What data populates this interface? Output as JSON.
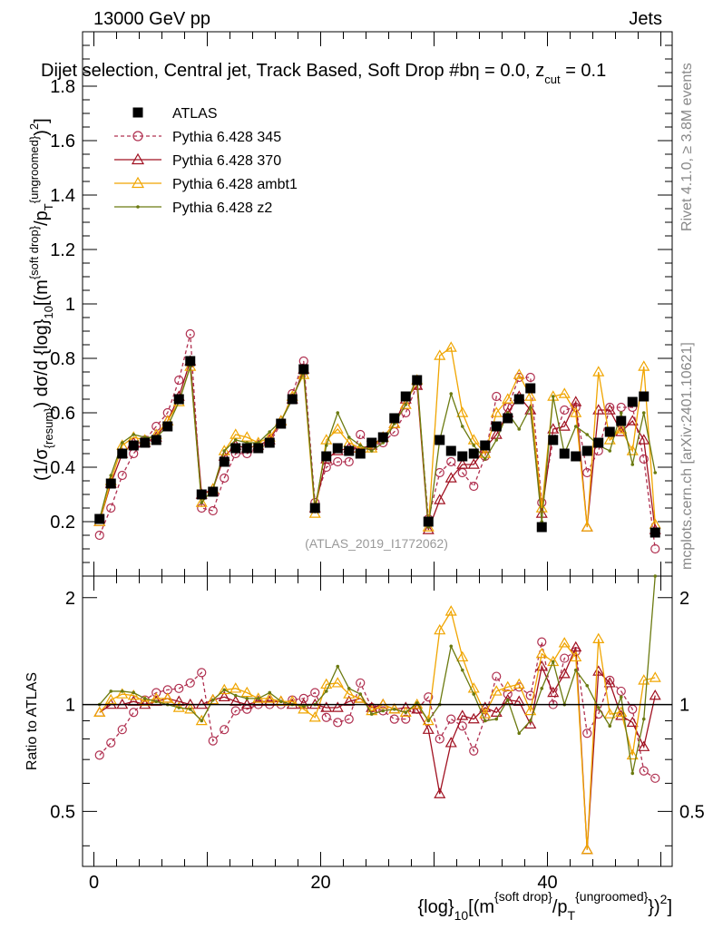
{
  "header": {
    "energy": "13000 GeV pp",
    "category": "Jets",
    "selection_prefix": "Dijet selection, Central jet, Track Based, Soft Drop #b",
    "eta_text": "η = 0.0, z",
    "cut_sub": "cut",
    "zcut_val": " = 0.1",
    "watermark": "(ATLAS_2019_I1772062)",
    "side_label_top": "Rivet 4.1.0, ≥ 3.8M events",
    "side_label_bottom": "mcplots.cern.ch [arXiv:2401.10621]"
  },
  "axes": {
    "ylabel_main": "(1/σ_{resum}) dσ/d {log}_{10}[(m^{soft drop}/p_T^{ungroomed})^2]",
    "ylabel_ratio": "Ratio to ATLAS",
    "xlabel": "{log}_{10}[(m^{soft drop}/p_T^{ungroomed})^2]"
  },
  "legend": [
    {
      "name": "ATLAS",
      "color": "#000000",
      "marker": "square"
    },
    {
      "name": "Pythia 6.428 345",
      "color": "#b03050",
      "marker": "circle"
    },
    {
      "name": "Pythia 6.428 370",
      "color": "#a01020",
      "marker": "triangle"
    },
    {
      "name": "Pythia 6.428 ambt1",
      "color": "#f0a500",
      "marker": "triangle"
    },
    {
      "name": "Pythia 6.428 z2",
      "color": "#6b7a10",
      "marker": "dot"
    }
  ],
  "chart_data": [
    {
      "type": "line",
      "panel": "main",
      "title": "Dijet selection, Central jet, Track Based, Soft Drop #b η = 0.0, z_cut = 0.1",
      "xlim": [
        -1,
        51
      ],
      "ylim": [
        0,
        2.0
      ],
      "yticks": [
        0.2,
        0.4,
        0.6,
        0.8,
        1,
        1.2,
        1.4,
        1.6,
        1.8
      ],
      "ytick_labels": [
        "0.2",
        "0.4",
        "0.6",
        "0.8",
        "1",
        "1.2",
        "1.4",
        "1.6",
        "1.8"
      ],
      "x": [
        0.5,
        1.5,
        2.5,
        3.5,
        4.5,
        5.5,
        6.5,
        7.5,
        8.5,
        9.5,
        10.5,
        11.5,
        12.5,
        13.5,
        14.5,
        15.5,
        16.5,
        17.5,
        18.5,
        19.5,
        20.5,
        21.5,
        22.5,
        23.5,
        24.5,
        25.5,
        26.5,
        27.5,
        28.5,
        29.5,
        30.5,
        31.5,
        32.5,
        33.5,
        34.5,
        35.5,
        36.5,
        37.5,
        38.5,
        39.5,
        40.5,
        41.5,
        42.5,
        43.5,
        44.5,
        45.5,
        46.5,
        47.5,
        48.5,
        49.5
      ],
      "series": [
        {
          "name": "ATLAS",
          "values": [
            0.21,
            0.34,
            0.45,
            0.48,
            0.49,
            0.5,
            0.55,
            0.65,
            0.79,
            0.3,
            0.31,
            0.42,
            0.47,
            0.47,
            0.47,
            0.49,
            0.56,
            0.65,
            0.76,
            0.25,
            0.44,
            0.47,
            0.46,
            0.45,
            0.49,
            0.51,
            0.58,
            0.66,
            0.72,
            0.2,
            0.5,
            0.46,
            0.44,
            0.45,
            0.48,
            0.55,
            0.58,
            0.65,
            0.69,
            0.18,
            0.5,
            0.45,
            0.44,
            0.46,
            0.49,
            0.53,
            0.57,
            0.64,
            0.66,
            0.16
          ]
        },
        {
          "name": "Pythia 6.428 345",
          "values": [
            0.15,
            0.25,
            0.37,
            0.45,
            0.5,
            0.55,
            0.6,
            0.72,
            0.89,
            0.25,
            0.24,
            0.36,
            0.45,
            0.45,
            0.47,
            0.49,
            0.56,
            0.67,
            0.79,
            0.27,
            0.4,
            0.42,
            0.42,
            0.52,
            0.48,
            0.49,
            0.53,
            0.6,
            0.7,
            0.21,
            0.38,
            0.42,
            0.38,
            0.33,
            0.44,
            0.66,
            0.62,
            0.73,
            0.73,
            0.27,
            0.5,
            0.61,
            0.62,
            0.38,
            0.46,
            0.62,
            0.62,
            0.62,
            0.43,
            0.1
          ]
        },
        {
          "name": "Pythia 6.428 370",
          "values": [
            0.2,
            0.34,
            0.45,
            0.49,
            0.49,
            0.51,
            0.57,
            0.66,
            0.79,
            0.3,
            0.32,
            0.44,
            0.48,
            0.47,
            0.48,
            0.5,
            0.57,
            0.65,
            0.76,
            0.25,
            0.43,
            0.46,
            0.47,
            0.47,
            0.48,
            0.51,
            0.56,
            0.65,
            0.7,
            0.17,
            0.28,
            0.36,
            0.41,
            0.41,
            0.47,
            0.52,
            0.6,
            0.66,
            0.61,
            0.23,
            0.54,
            0.55,
            0.64,
            0.18,
            0.61,
            0.61,
            0.53,
            0.57,
            0.5,
            0.17
          ]
        },
        {
          "name": "Pythia 6.428 ambt1",
          "values": [
            0.2,
            0.35,
            0.48,
            0.51,
            0.5,
            0.52,
            0.57,
            0.64,
            0.77,
            0.27,
            0.32,
            0.46,
            0.52,
            0.51,
            0.49,
            0.51,
            0.57,
            0.66,
            0.74,
            0.23,
            0.5,
            0.54,
            0.49,
            0.47,
            0.47,
            0.51,
            0.56,
            0.63,
            0.72,
            0.18,
            0.81,
            0.84,
            0.6,
            0.5,
            0.45,
            0.6,
            0.65,
            0.74,
            0.66,
            0.25,
            0.66,
            0.67,
            0.6,
            0.18,
            0.75,
            0.5,
            0.54,
            0.46,
            0.77,
            0.19
          ]
        },
        {
          "name": "Pythia 6.428 z2",
          "values": [
            0.21,
            0.37,
            0.49,
            0.52,
            0.51,
            0.51,
            0.55,
            0.64,
            0.77,
            0.27,
            0.32,
            0.46,
            0.5,
            0.49,
            0.49,
            0.53,
            0.57,
            0.65,
            0.75,
            0.25,
            0.48,
            0.6,
            0.51,
            0.48,
            0.46,
            0.49,
            0.56,
            0.63,
            0.73,
            0.18,
            0.5,
            0.67,
            0.55,
            0.48,
            0.43,
            0.5,
            0.6,
            0.54,
            0.62,
            0.2,
            0.66,
            0.45,
            0.55,
            0.52,
            0.48,
            0.46,
            0.6,
            0.41,
            0.6,
            0.38
          ]
        }
      ]
    },
    {
      "type": "line",
      "panel": "ratio",
      "ylabel": "Ratio to ATLAS",
      "xlabel": "{log}_{10}[(m^{soft drop}/p_T^{ungroomed})^2]",
      "xlim": [
        -1,
        51
      ],
      "ylim": [
        0.35,
        2.3
      ],
      "xticks": [
        0,
        20,
        40
      ],
      "xtick_labels": [
        "0",
        "20",
        "40"
      ],
      "yticks": [
        0.5,
        1,
        2
      ],
      "ytick_labels": [
        "0.5",
        "1",
        "2"
      ],
      "reference_line": 1,
      "series": [
        {
          "name": "Pythia 6.428 345",
          "values": [
            0.72,
            0.78,
            0.85,
            0.95,
            1.03,
            1.08,
            1.1,
            1.11,
            1.15,
            1.23,
            0.79,
            0.85,
            0.96,
            0.97,
            1.0,
            1.0,
            1.0,
            1.03,
            1.04,
            1.08,
            0.92,
            0.89,
            0.91,
            1.15,
            0.98,
            0.96,
            0.91,
            0.91,
            0.97,
            1.05,
            0.8,
            0.91,
            0.87,
            0.74,
            0.92,
            1.2,
            1.07,
            1.12,
            1.06,
            1.5,
            1.0,
            1.35,
            1.41,
            0.83,
            0.94,
            1.17,
            1.09,
            0.97,
            0.65,
            0.62
          ]
        },
        {
          "name": "Pythia 6.428 370",
          "values": [
            0.95,
            1.0,
            1.0,
            1.02,
            1.0,
            1.02,
            1.04,
            1.02,
            1.0,
            1.0,
            1.03,
            1.05,
            1.02,
            1.0,
            1.02,
            1.02,
            1.02,
            1.0,
            1.0,
            1.0,
            0.98,
            0.98,
            1.02,
            1.04,
            0.98,
            1.0,
            0.97,
            0.98,
            0.97,
            0.85,
            0.56,
            0.78,
            0.93,
            0.91,
            0.98,
            0.95,
            1.03,
            1.02,
            0.88,
            1.28,
            1.08,
            1.22,
            1.45,
            0.39,
            1.24,
            1.15,
            0.93,
            0.89,
            0.76,
            1.06
          ]
        },
        {
          "name": "Pythia 6.428 ambt1",
          "values": [
            0.95,
            1.03,
            1.07,
            1.06,
            1.02,
            1.04,
            1.04,
            0.98,
            0.97,
            0.9,
            1.03,
            1.1,
            1.11,
            1.08,
            1.04,
            1.04,
            1.02,
            1.02,
            0.97,
            0.92,
            1.14,
            1.15,
            1.07,
            1.04,
            0.96,
            1.0,
            0.97,
            0.95,
            1.0,
            0.9,
            1.62,
            1.83,
            1.36,
            1.11,
            0.94,
            1.09,
            1.12,
            1.14,
            0.96,
            1.39,
            1.32,
            1.49,
            1.36,
            0.39,
            1.53,
            0.94,
            0.95,
            0.72,
            1.17,
            1.19
          ]
        },
        {
          "name": "Pythia 6.428 z2",
          "values": [
            1.0,
            1.09,
            1.09,
            1.08,
            1.04,
            1.02,
            1.0,
            0.98,
            0.97,
            0.9,
            1.03,
            1.1,
            1.06,
            1.04,
            1.04,
            1.08,
            1.02,
            1.0,
            0.99,
            1.0,
            1.09,
            1.28,
            1.11,
            1.07,
            0.94,
            0.96,
            0.97,
            0.95,
            1.01,
            0.9,
            1.0,
            1.46,
            1.25,
            1.07,
            0.9,
            0.91,
            1.03,
            0.83,
            0.9,
            1.11,
            1.32,
            1.0,
            1.25,
            1.13,
            0.98,
            0.87,
            1.05,
            0.64,
            0.91,
            2.38
          ]
        }
      ]
    }
  ]
}
